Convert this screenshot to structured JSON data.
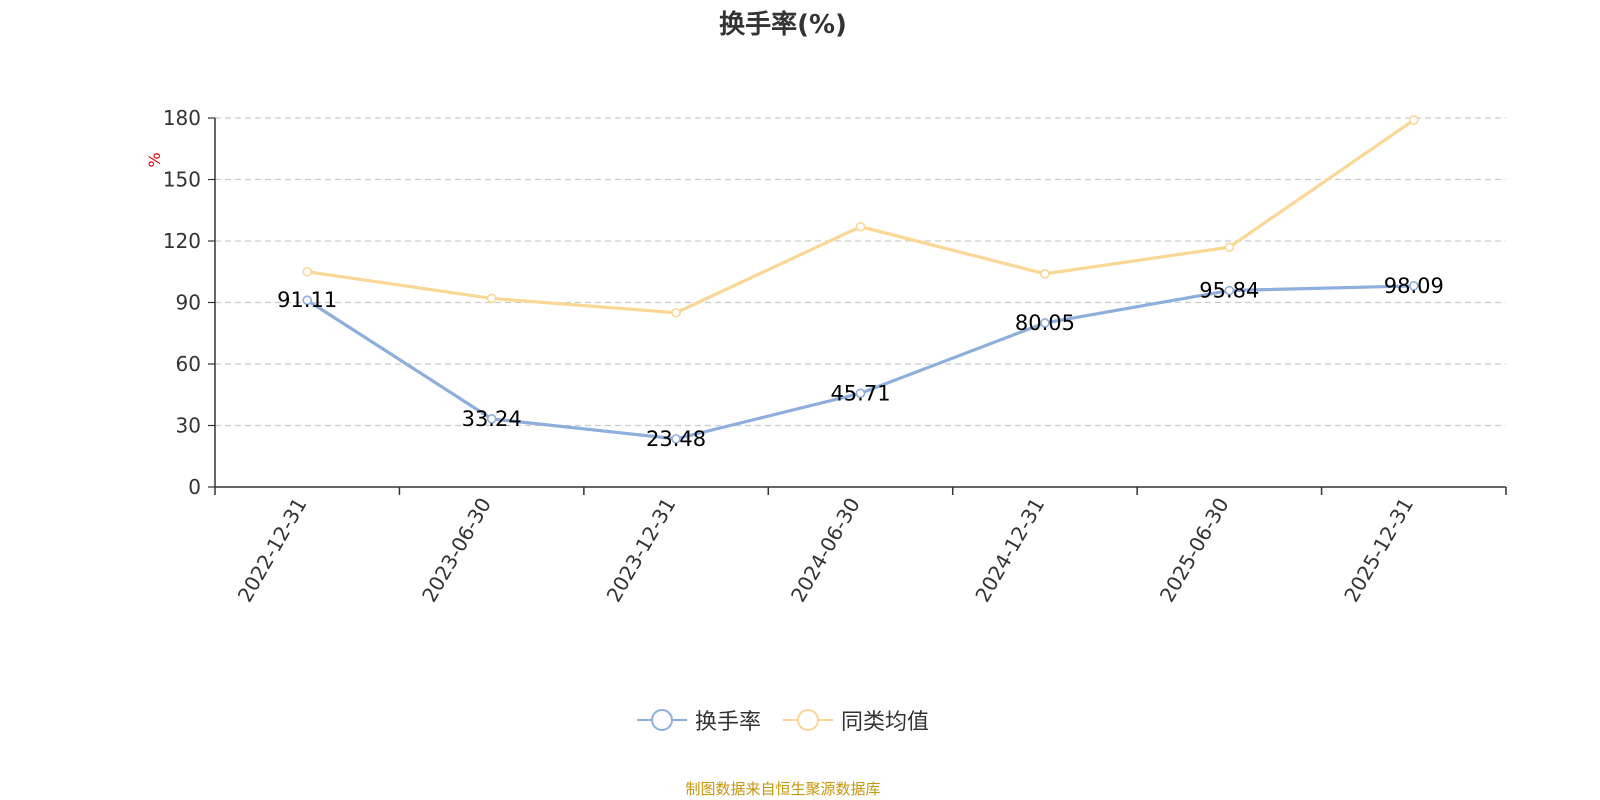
{
  "chart_data": {
    "type": "line",
    "title": "换手率(%)",
    "ylabel": "%",
    "xlabel": "",
    "ylim": [
      0,
      180
    ],
    "yticks": [
      0,
      30,
      60,
      90,
      120,
      150,
      180
    ],
    "categories": [
      "2022-12-31",
      "2023-06-30",
      "2023-12-31",
      "2024-06-30",
      "2024-12-31",
      "2025-06-30",
      "2025-12-31"
    ],
    "series": [
      {
        "name": "换手率",
        "color": "#8eaedb",
        "values": [
          91.11,
          33.24,
          23.48,
          45.71,
          80.05,
          95.84,
          98.09
        ],
        "labels": [
          "91.11",
          "33.24",
          "23.48",
          "45.71",
          "80.05",
          "95.84",
          "98.09"
        ]
      },
      {
        "name": "同类均值",
        "color": "#fad795",
        "values": [
          105,
          92,
          85,
          127,
          104,
          117,
          179
        ]
      }
    ],
    "grid": "horizontal-dashed",
    "legend": "bottom-center"
  },
  "source_note": "制图数据来自恒生聚源数据库"
}
